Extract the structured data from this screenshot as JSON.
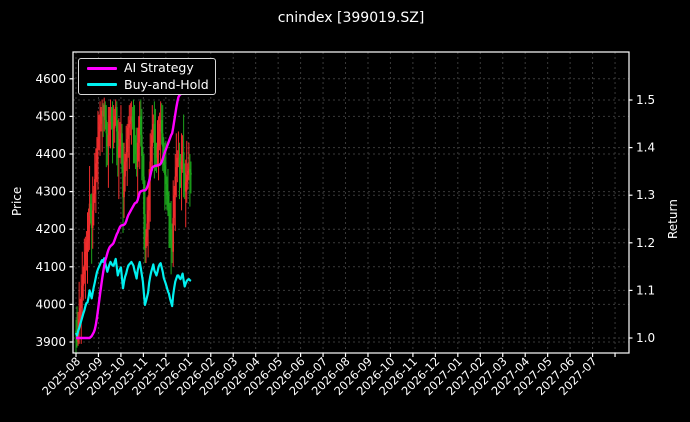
{
  "title": "cnindex [399019.SZ]",
  "legend": {
    "items": [
      {
        "label": "AI Strategy",
        "color": "#ff00ff"
      },
      {
        "label": "Buy-and-Hold",
        "color": "#00f0f0"
      }
    ]
  },
  "colors": {
    "background": "#000000",
    "foreground": "#ffffff",
    "grid": "#3a3a3a",
    "up_candle": "#ef2d2d",
    "down_candle": "#1ca41c",
    "ai_line": "#ff00ff",
    "buy_hold_line": "#00f0f0"
  },
  "chart_data": {
    "type": "candlestick+line",
    "title": "cnindex [399019.SZ]",
    "x_axis": {
      "tick_labels": [
        "2025-08",
        "2025-09",
        "2025-10",
        "2025-11",
        "2025-12",
        "2026-01",
        "2026-02",
        "2026-03",
        "2026-04",
        "2026-05",
        "2026-06",
        "2026-07",
        "2026-08",
        "2026-09",
        "2026-10",
        "2026-11",
        "2026-12",
        "2027-01",
        "2027-02",
        "2027-03",
        "2027-04",
        "2027-05",
        "2027-06",
        "2027-07"
      ],
      "data_start": "2025-08",
      "data_end": "2026-01"
    },
    "price_axis": {
      "label": "Price",
      "ticks": [
        3900,
        4000,
        4100,
        4200,
        4300,
        4400,
        4500,
        4600
      ]
    },
    "return_axis": {
      "label": "Return",
      "ticks": [
        1.0,
        1.1,
        1.2,
        1.3,
        1.4,
        1.5
      ]
    },
    "candles": {
      "name": "cnindex price (daily OHLC)",
      "axis": "price",
      "up_color": "#ef2d2d",
      "down_color": "#1ca41c",
      "opens": [
        3930,
        3920,
        3900,
        3935,
        3960,
        3990,
        4020,
        4050,
        4080,
        4105,
        4140,
        4165,
        4170,
        4210,
        4268,
        4235,
        4203,
        4250,
        4295,
        4333,
        4375,
        4415,
        4440,
        4460,
        4480,
        4500,
        4515,
        4500,
        4530,
        4490,
        4455,
        4420,
        4450,
        4480,
        4500,
        4485,
        4470,
        4470,
        4500,
        4525,
        4460,
        4390,
        4420,
        4440,
        4455,
        4370,
        4285,
        4340,
        4380,
        4405,
        4440,
        4470,
        4480,
        4490,
        4500,
        4485,
        4470,
        4430,
        4400,
        4365,
        4430,
        4470,
        4500,
        4450,
        4395,
        4340,
        4240,
        4150,
        4180,
        4215,
        4250,
        4330,
        4380,
        4420,
        4450,
        4480,
        4430,
        4410,
        4390,
        4420,
        4460,
        4480,
        4490,
        4455,
        4420,
        4370,
        4345,
        4320,
        4290,
        4260,
        4240,
        4200,
        4170,
        4140,
        4230,
        4290,
        4340,
        4365,
        4390,
        4390,
        4370,
        4360,
        4380,
        4405,
        4350,
        4300,
        4325,
        4345,
        4355,
        4360,
        4350
      ],
      "highs": [
        3960,
        3995,
        3980,
        4060,
        4015,
        4080,
        4140,
        4100,
        4175,
        4180,
        4195,
        4245,
        4255,
        4368,
        4293,
        4295,
        4340,
        4315,
        4403,
        4415,
        4445,
        4515,
        4505,
        4540,
        4525,
        4545,
        4535,
        4550,
        4540,
        4530,
        4485,
        4525,
        4525,
        4545,
        4525,
        4540,
        4530,
        4520,
        4545,
        4540,
        4490,
        4495,
        4485,
        4530,
        4480,
        4430,
        4430,
        4400,
        4475,
        4480,
        4500,
        4530,
        4535,
        4540,
        4525,
        4545,
        4530,
        4450,
        4470,
        4470,
        4500,
        4540,
        4545,
        4520,
        4420,
        4400,
        4330,
        4200,
        4285,
        4290,
        4360,
        4455,
        4465,
        4530,
        4505,
        4540,
        4520,
        4430,
        4490,
        4500,
        4510,
        4540,
        4535,
        4530,
        4445,
        4430,
        4435,
        4340,
        4360,
        4300,
        4270,
        4275,
        4215,
        4330,
        4315,
        4400,
        4455,
        4410,
        4460,
        4430,
        4400,
        4455,
        4450,
        4505,
        4375,
        4385,
        4435,
        4375,
        4430,
        4400,
        4380
      ],
      "lows": [
        3870,
        3885,
        3890,
        3895,
        3940,
        3895,
        3965,
        4010,
        4055,
        4015,
        4090,
        4055,
        4140,
        4145,
        4215,
        4108,
        4148,
        4210,
        4270,
        4243,
        4325,
        4305,
        4410,
        4395,
        4460,
        4405,
        4445,
        4460,
        4465,
        4365,
        4370,
        4310,
        4420,
        4415,
        4465,
        4375,
        4415,
        4430,
        4475,
        4370,
        4340,
        4280,
        4390,
        4375,
        4350,
        4190,
        4230,
        4300,
        4355,
        4315,
        4390,
        4360,
        4450,
        4425,
        4465,
        4375,
        4375,
        4360,
        4340,
        4275,
        4380,
        4360,
        4420,
        4330,
        4320,
        4145,
        4110,
        4110,
        4155,
        4125,
        4200,
        4220,
        4350,
        4355,
        4430,
        4335,
        4355,
        4350,
        4365,
        4330,
        4410,
        4370,
        4425,
        4355,
        4350,
        4250,
        4265,
        4250,
        4235,
        4150,
        4150,
        4080,
        4110,
        4100,
        4210,
        4195,
        4285,
        4325,
        4365,
        4280,
        4310,
        4250,
        4350,
        4285,
        4280,
        4205,
        4270,
        4305,
        4330,
        4260,
        4295
      ],
      "closes": [
        3920,
        3900,
        3935,
        3960,
        3990,
        4020,
        4050,
        4080,
        4105,
        4140,
        4165,
        4170,
        4210,
        4268,
        4235,
        4203,
        4250,
        4295,
        4333,
        4375,
        4415,
        4440,
        4460,
        4480,
        4500,
        4515,
        4500,
        4530,
        4490,
        4455,
        4420,
        4450,
        4480,
        4500,
        4485,
        4470,
        4470,
        4500,
        4525,
        4460,
        4390,
        4420,
        4440,
        4455,
        4370,
        4285,
        4340,
        4380,
        4405,
        4440,
        4470,
        4480,
        4490,
        4500,
        4485,
        4470,
        4430,
        4400,
        4365,
        4430,
        4470,
        4500,
        4450,
        4395,
        4340,
        4240,
        4150,
        4180,
        4215,
        4250,
        4330,
        4380,
        4420,
        4450,
        4480,
        4430,
        4410,
        4390,
        4420,
        4460,
        4480,
        4490,
        4455,
        4420,
        4370,
        4345,
        4320,
        4290,
        4260,
        4240,
        4200,
        4170,
        4140,
        4230,
        4290,
        4340,
        4365,
        4390,
        4390,
        4370,
        4360,
        4380,
        4405,
        4350,
        4300,
        4325,
        4345,
        4355,
        4360,
        4350,
        4345
      ]
    },
    "series": [
      {
        "name": "AI Strategy",
        "axis": "return",
        "color": "#ff00ff",
        "values": [
          1.0,
          1.0,
          1.0,
          1.0,
          1.0,
          1.0,
          1.0,
          1.0,
          1.0,
          1.0,
          1.0,
          1.0,
          1.0,
          1.0,
          1.002,
          1.004,
          1.008,
          1.012,
          1.018,
          1.028,
          1.042,
          1.058,
          1.075,
          1.092,
          1.108,
          1.124,
          1.138,
          1.152,
          1.163,
          1.17,
          1.178,
          1.185,
          1.19,
          1.193,
          1.195,
          1.197,
          1.2,
          1.206,
          1.212,
          1.218,
          1.222,
          1.228,
          1.233,
          1.236,
          1.237,
          1.237,
          1.238,
          1.24,
          1.245,
          1.252,
          1.258,
          1.262,
          1.266,
          1.27,
          1.274,
          1.278,
          1.282,
          1.284,
          1.285,
          1.29,
          1.298,
          1.306,
          1.308,
          1.309,
          1.31,
          1.31,
          1.31,
          1.312,
          1.316,
          1.322,
          1.33,
          1.34,
          1.35,
          1.358,
          1.36,
          1.361,
          1.362,
          1.362,
          1.363,
          1.363,
          1.364,
          1.366,
          1.37,
          1.376,
          1.384,
          1.39,
          1.396,
          1.402,
          1.408,
          1.414,
          1.42,
          1.426,
          1.43,
          1.442,
          1.456,
          1.47,
          1.484,
          1.496,
          1.506,
          1.51,
          1.512,
          1.513,
          1.513,
          1.514,
          1.516,
          1.522,
          1.532,
          1.544,
          1.556,
          1.568,
          1.578
        ]
      },
      {
        "name": "Buy-and-Hold",
        "axis": "return",
        "color": "#00f0f0",
        "initial_price": 3880,
        "derived_from": "candles.closes / initial_price"
      }
    ]
  }
}
